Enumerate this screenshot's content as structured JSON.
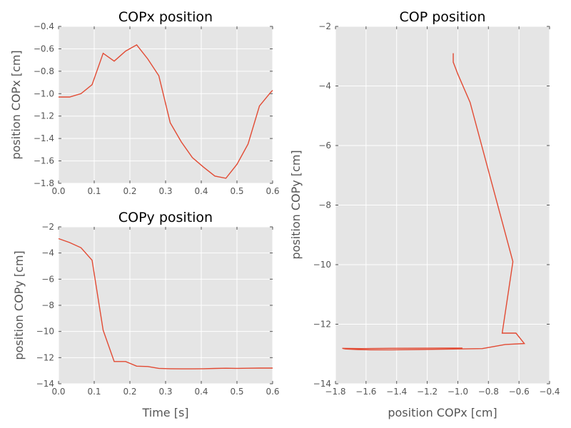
{
  "chart_data": [
    {
      "type": "line",
      "title": "COPx position",
      "xlabel": "",
      "ylabel": "position COPx [cm]",
      "xlim": [
        0,
        0.6
      ],
      "ylim": [
        -1.8,
        -0.4
      ],
      "xticks": [
        "0.0",
        "0.1",
        "0.2",
        "0.3",
        "0.4",
        "0.5",
        "0.6"
      ],
      "yticks": [
        "−1.8",
        "−1.6",
        "−1.4",
        "−1.2",
        "−1.0",
        "−0.8",
        "−0.6",
        "−0.4"
      ],
      "grid": true,
      "series": [
        {
          "color": "#e24a33",
          "x": [
            0.0,
            0.031,
            0.063,
            0.094,
            0.125,
            0.156,
            0.188,
            0.219,
            0.25,
            0.281,
            0.313,
            0.344,
            0.375,
            0.406,
            0.438,
            0.469,
            0.5,
            0.531,
            0.563,
            0.594,
            0.6
          ],
          "y": [
            -1.03,
            -1.03,
            -1.0,
            -0.92,
            -0.64,
            -0.71,
            -0.62,
            -0.565,
            -0.69,
            -0.84,
            -1.26,
            -1.43,
            -1.57,
            -1.655,
            -1.735,
            -1.755,
            -1.63,
            -1.45,
            -1.11,
            -0.99,
            -0.97
          ]
        }
      ]
    },
    {
      "type": "line",
      "title": "COPy position",
      "xlabel": "Time [s]",
      "ylabel": "position COPy [cm]",
      "xlim": [
        0,
        0.6
      ],
      "ylim": [
        -14,
        -2
      ],
      "xticks": [
        "0.0",
        "0.1",
        "0.2",
        "0.3",
        "0.4",
        "0.5",
        "0.6"
      ],
      "yticks": [
        "−14",
        "−12",
        "−10",
        "−8",
        "−6",
        "−4",
        "−2"
      ],
      "grid": true,
      "series": [
        {
          "color": "#e24a33",
          "x": [
            0.0,
            0.031,
            0.063,
            0.094,
            0.125,
            0.156,
            0.188,
            0.219,
            0.25,
            0.281,
            0.313,
            0.344,
            0.375,
            0.406,
            0.438,
            0.469,
            0.5,
            0.531,
            0.563,
            0.594,
            0.6
          ],
          "y": [
            -2.9,
            -3.2,
            -3.6,
            -4.55,
            -9.9,
            -12.3,
            -12.3,
            -12.65,
            -12.68,
            -12.82,
            -12.85,
            -12.86,
            -12.86,
            -12.85,
            -12.83,
            -12.81,
            -12.82,
            -12.81,
            -12.8,
            -12.8,
            -12.8
          ]
        }
      ]
    },
    {
      "type": "line",
      "title": "COP position",
      "xlabel": "position COPx [cm]",
      "ylabel": "position COPy [cm]",
      "xlim": [
        -1.8,
        -0.4
      ],
      "ylim": [
        -14,
        -2
      ],
      "xticks": [
        "−1.8",
        "−1.6",
        "−1.4",
        "−1.2",
        "−1.0",
        "−0.8",
        "−0.6",
        "−0.4"
      ],
      "yticks": [
        "−14",
        "−12",
        "−10",
        "−8",
        "−6",
        "−4",
        "−2"
      ],
      "grid": true,
      "series": [
        {
          "color": "#e24a33",
          "x": [
            -1.03,
            -1.03,
            -1.0,
            -0.92,
            -0.64,
            -0.71,
            -0.62,
            -0.565,
            -0.69,
            -0.84,
            -1.26,
            -1.43,
            -1.57,
            -1.655,
            -1.735,
            -1.755,
            -1.63,
            -1.45,
            -1.11,
            -0.99,
            -0.97
          ],
          "y": [
            -2.9,
            -3.2,
            -3.6,
            -4.55,
            -9.9,
            -12.3,
            -12.3,
            -12.65,
            -12.68,
            -12.82,
            -12.85,
            -12.86,
            -12.86,
            -12.85,
            -12.83,
            -12.81,
            -12.82,
            -12.81,
            -12.8,
            -12.8,
            -12.8
          ]
        }
      ]
    }
  ]
}
